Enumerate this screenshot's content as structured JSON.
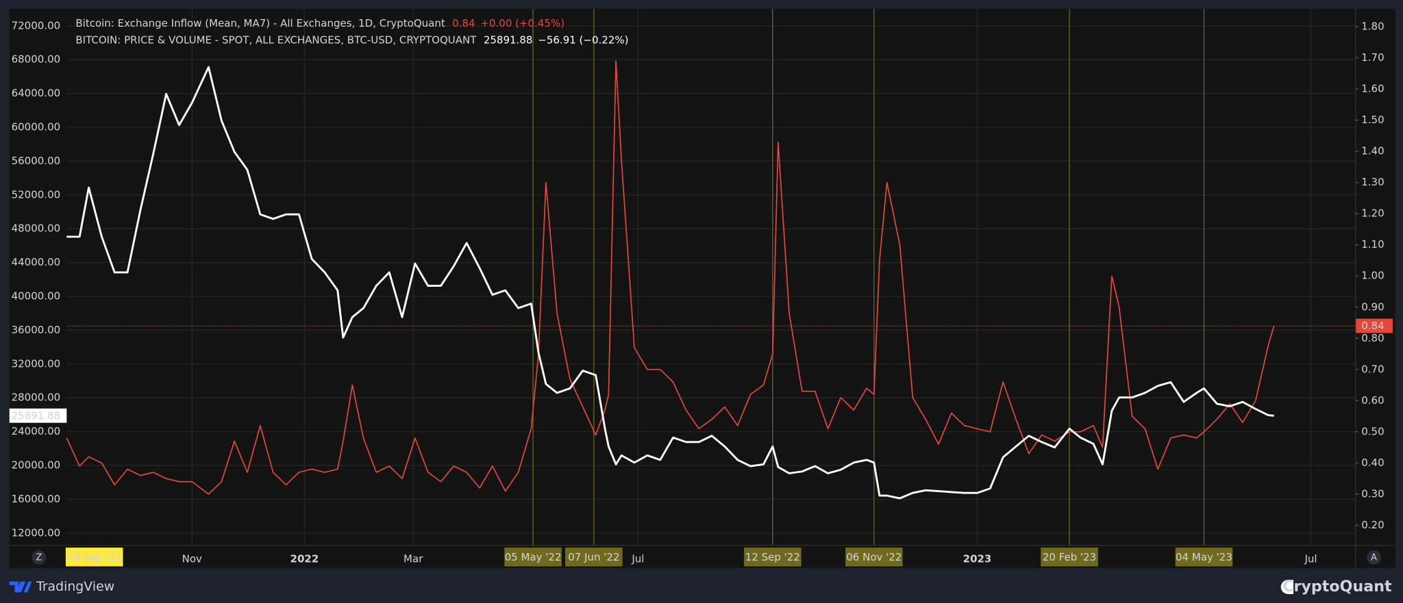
{
  "chart_data": {
    "type": "line",
    "x": [
      "2021-08-25",
      "2021-09-01",
      "2021-09-06",
      "2021-09-13",
      "2021-09-20",
      "2021-09-27",
      "2021-10-04",
      "2021-10-11",
      "2021-10-18",
      "2021-10-25",
      "2021-11-01",
      "2021-11-10",
      "2021-11-17",
      "2021-11-24",
      "2021-12-01",
      "2021-12-08",
      "2021-12-15",
      "2021-12-22",
      "2021-12-29",
      "2022-01-05",
      "2022-01-12",
      "2022-01-19",
      "2022-01-22",
      "2022-01-27",
      "2022-02-02",
      "2022-02-09",
      "2022-02-16",
      "2022-02-23",
      "2022-03-02",
      "2022-03-09",
      "2022-03-16",
      "2022-03-23",
      "2022-03-30",
      "2022-04-06",
      "2022-04-13",
      "2022-04-20",
      "2022-04-27",
      "2022-05-04",
      "2022-05-08",
      "2022-05-12",
      "2022-05-18",
      "2022-05-25",
      "2022-06-01",
      "2022-06-08",
      "2022-06-13",
      "2022-06-15",
      "2022-06-19",
      "2022-06-22",
      "2022-06-29",
      "2022-07-06",
      "2022-07-13",
      "2022-07-20",
      "2022-07-27",
      "2022-08-03",
      "2022-08-10",
      "2022-08-17",
      "2022-08-24",
      "2022-08-31",
      "2022-09-07",
      "2022-09-12",
      "2022-09-15",
      "2022-09-21",
      "2022-09-28",
      "2022-10-05",
      "2022-10-12",
      "2022-10-19",
      "2022-10-26",
      "2022-11-02",
      "2022-11-06",
      "2022-11-09",
      "2022-11-13",
      "2022-11-20",
      "2022-11-27",
      "2022-12-04",
      "2022-12-11",
      "2022-12-18",
      "2022-12-25",
      "2023-01-01",
      "2023-01-08",
      "2023-01-15",
      "2023-01-22",
      "2023-01-29",
      "2023-02-05",
      "2023-02-12",
      "2023-02-20",
      "2023-02-26",
      "2023-03-05",
      "2023-03-10",
      "2023-03-15",
      "2023-03-19",
      "2023-03-26",
      "2023-04-02",
      "2023-04-09",
      "2023-04-16",
      "2023-04-23",
      "2023-04-30",
      "2023-05-04",
      "2023-05-11",
      "2023-05-18",
      "2023-05-25",
      "2023-06-01",
      "2023-06-08",
      "2023-06-11"
    ],
    "series": [
      {
        "name": "Bitcoin: Exchange Inflow (Mean, MA7) - All Exchanges, 1D, CryptoQuant",
        "legend_value": "0.84",
        "legend_change": "+0.00 (+0.45%)",
        "color": "#e5483b",
        "axis": "y2",
        "values": [
          0.48,
          0.39,
          0.42,
          0.4,
          0.33,
          0.38,
          0.36,
          0.37,
          0.35,
          0.34,
          0.34,
          0.3,
          0.34,
          0.47,
          0.37,
          0.52,
          0.37,
          0.33,
          0.37,
          0.38,
          0.37,
          0.38,
          0.47,
          0.65,
          0.48,
          0.37,
          0.39,
          0.35,
          0.48,
          0.37,
          0.34,
          0.39,
          0.37,
          0.32,
          0.39,
          0.31,
          0.37,
          0.51,
          0.75,
          1.3,
          0.88,
          0.67,
          0.58,
          0.49,
          0.57,
          0.62,
          1.69,
          1.37,
          0.77,
          0.7,
          0.7,
          0.66,
          0.57,
          0.51,
          0.54,
          0.58,
          0.52,
          0.62,
          0.65,
          0.75,
          1.43,
          0.88,
          0.63,
          0.63,
          0.51,
          0.61,
          0.57,
          0.64,
          0.62,
          1.05,
          1.3,
          1.1,
          0.61,
          0.54,
          0.46,
          0.56,
          0.52,
          0.51,
          0.5,
          0.66,
          0.54,
          0.43,
          0.49,
          0.47,
          0.5,
          0.5,
          0.52,
          0.45,
          1.0,
          0.9,
          0.55,
          0.51,
          0.38,
          0.48,
          0.49,
          0.48,
          0.5,
          0.54,
          0.59,
          0.53,
          0.6,
          0.78,
          0.84
        ]
      },
      {
        "name": "BITCOIN: PRICE & VOLUME - SPOT, ALL EXCHANGES, BTC-USD, CRYPTOQUANT",
        "legend_value": "25891.88",
        "legend_change": "−56.91 (−0.22%)",
        "color": "#ffffff",
        "axis": "y",
        "values": [
          47060,
          47060,
          52870,
          47060,
          42835,
          42835,
          50230,
          56880,
          63950,
          60260,
          62900,
          67120,
          60790,
          57090,
          54980,
          49700,
          49170,
          49700,
          49700,
          44420,
          42835,
          40720,
          35130,
          37550,
          38610,
          41250,
          42835,
          37550,
          43890,
          41250,
          41250,
          43575,
          46320,
          43360,
          40195,
          40720,
          38610,
          39140,
          33330,
          29640,
          28580,
          29110,
          31220,
          30690,
          24355,
          22240,
          20130,
          21190,
          20340,
          21190,
          20660,
          23300,
          22770,
          22770,
          23510,
          22240,
          20660,
          19920,
          20130,
          22240,
          19815,
          19075,
          19290,
          19920,
          19075,
          19500,
          20340,
          20660,
          20340,
          16435,
          16435,
          16120,
          16750,
          17070,
          16960,
          16860,
          16750,
          16750,
          17280,
          20975,
          22240,
          23510,
          22770,
          22140,
          24355,
          23300,
          22560,
          20130,
          26470,
          28050,
          28050,
          28580,
          29420,
          29850,
          27520,
          28580,
          29110,
          27310,
          26995,
          27520,
          26680,
          25940,
          25891.88
        ]
      }
    ],
    "xlim": [
      "2021-08-25",
      "2023-07-25"
    ],
    "xticks": [
      {
        "value": "2021-11-01",
        "label": "Nov"
      },
      {
        "value": "2022-01-01",
        "label": "2022"
      },
      {
        "value": "2022-03-01",
        "label": "Mar"
      },
      {
        "value": "2022-07-01",
        "label": "Jul"
      },
      {
        "value": "2023-01-01",
        "label": "2023"
      },
      {
        "value": "2023-07-01",
        "label": "Jul"
      }
    ],
    "ylim": [
      10600,
      74000
    ],
    "yticks": [
      {
        "value": 12000,
        "label": "12000.00"
      },
      {
        "value": 16000,
        "label": "16000.00"
      },
      {
        "value": 20000,
        "label": "20000.00"
      },
      {
        "value": 24000,
        "label": "24000.00"
      },
      {
        "value": 28000,
        "label": "28000.00"
      },
      {
        "value": 32000,
        "label": "32000.00"
      },
      {
        "value": 36000,
        "label": "36000.00"
      },
      {
        "value": 40000,
        "label": "40000.00"
      },
      {
        "value": 44000,
        "label": "44000.00"
      },
      {
        "value": 48000,
        "label": "48000.00"
      },
      {
        "value": 52000,
        "label": "52000.00"
      },
      {
        "value": 56000,
        "label": "56000.00"
      },
      {
        "value": 60000,
        "label": "60000.00"
      },
      {
        "value": 64000,
        "label": "64000.00"
      },
      {
        "value": 68000,
        "label": "68000.00"
      },
      {
        "value": 72000,
        "label": "72000.00"
      }
    ],
    "y2lim": [
      0.137,
      1.857
    ],
    "y2ticks": [
      {
        "value": 0.2,
        "label": "0.20"
      },
      {
        "value": 0.3,
        "label": "0.30"
      },
      {
        "value": 0.4,
        "label": "0.40"
      },
      {
        "value": 0.5,
        "label": "0.50"
      },
      {
        "value": 0.6,
        "label": "0.60"
      },
      {
        "value": 0.7,
        "label": "0.70"
      },
      {
        "value": 0.8,
        "label": "0.80"
      },
      {
        "value": 0.9,
        "label": "0.90"
      },
      {
        "value": 1.0,
        "label": "1.00"
      },
      {
        "value": 1.1,
        "label": "1.10"
      },
      {
        "value": 1.2,
        "label": "1.20"
      },
      {
        "value": 1.3,
        "label": "1.30"
      },
      {
        "value": 1.4,
        "label": "1.40"
      },
      {
        "value": 1.5,
        "label": "1.50"
      },
      {
        "value": 1.6,
        "label": "1.60"
      },
      {
        "value": 1.7,
        "label": "1.70"
      },
      {
        "value": 1.8,
        "label": "1.80"
      }
    ],
    "markers": [
      {
        "value": "2021-09-09",
        "label": "09 Sep '21"
      },
      {
        "value": "2022-05-05",
        "label": "05 May '22"
      },
      {
        "value": "2022-06-07",
        "label": "07 Jun '22"
      },
      {
        "value": "2022-09-12",
        "label": "12 Sep '22"
      },
      {
        "value": "2022-11-06",
        "label": "06 Nov '22"
      },
      {
        "value": "2023-02-20",
        "label": "20 Feb '23"
      },
      {
        "value": "2023-05-04",
        "label": "04 May '23"
      }
    ],
    "grid": true
  },
  "branding": {
    "left": "TradingView",
    "right": "CryptoQuant"
  },
  "buttons": {
    "left": "Z",
    "right": "A"
  }
}
